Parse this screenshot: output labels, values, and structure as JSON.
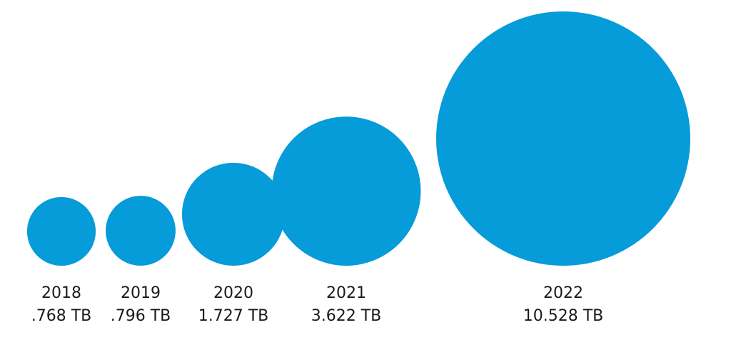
{
  "chart_data": {
    "type": "bubble",
    "title": "",
    "xlabel": "",
    "ylabel": "",
    "color": "#069bd9",
    "points": [
      {
        "year": "2018",
        "value": 0.768,
        "label": ".768 TB"
      },
      {
        "year": "2019",
        "value": 0.796,
        "label": ".796 TB"
      },
      {
        "year": "2020",
        "value": 1.727,
        "label": "1.727 TB"
      },
      {
        "year": "2021",
        "value": 3.622,
        "label": "3.622 TB"
      },
      {
        "year": "2022",
        "value": 10.528,
        "label": "10.528 TB"
      }
    ],
    "grid": false,
    "legend": "none"
  }
}
